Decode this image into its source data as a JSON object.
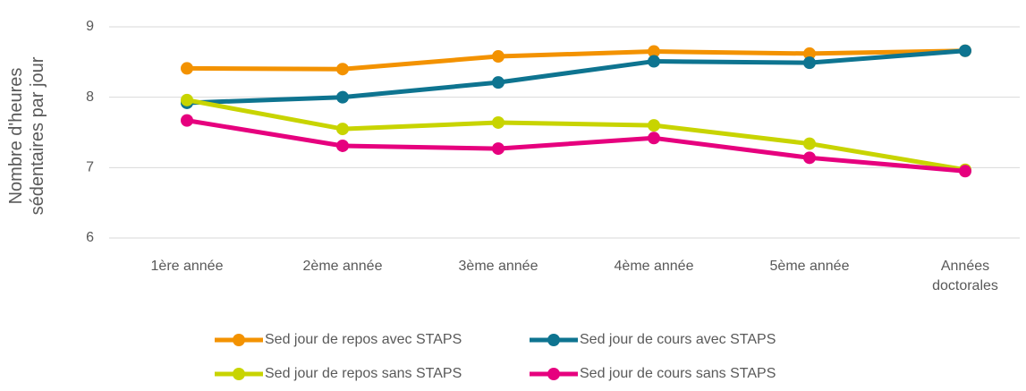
{
  "chart_data": {
    "type": "line",
    "y_label": "Nombre d'heures sédentaires par jour",
    "categories": [
      "1ère année",
      "2ème année",
      "3ème année",
      "4ème année",
      "5ème année",
      "Années doctorales"
    ],
    "series": [
      {
        "name": "Sed jour de repos avec STAPS",
        "color": "#f39200",
        "values": [
          8.41,
          8.4,
          8.58,
          8.65,
          8.62,
          8.66
        ]
      },
      {
        "name": "Sed jour de cours avec STAPS",
        "color": "#0e7490",
        "values": [
          7.92,
          8.0,
          8.21,
          8.51,
          8.49,
          8.66
        ]
      },
      {
        "name": "Sed jour de repos sans STAPS",
        "color": "#c8d400",
        "values": [
          7.96,
          7.55,
          7.64,
          7.6,
          7.34,
          6.97
        ]
      },
      {
        "name": "Sed jour de cours sans STAPS",
        "color": "#e6007e",
        "values": [
          7.67,
          7.31,
          7.27,
          7.42,
          7.14,
          6.95
        ]
      }
    ],
    "ylim": [
      6,
      9
    ],
    "yticks": [
      6,
      7,
      8,
      9
    ],
    "grid": true,
    "legend": "bottom"
  }
}
